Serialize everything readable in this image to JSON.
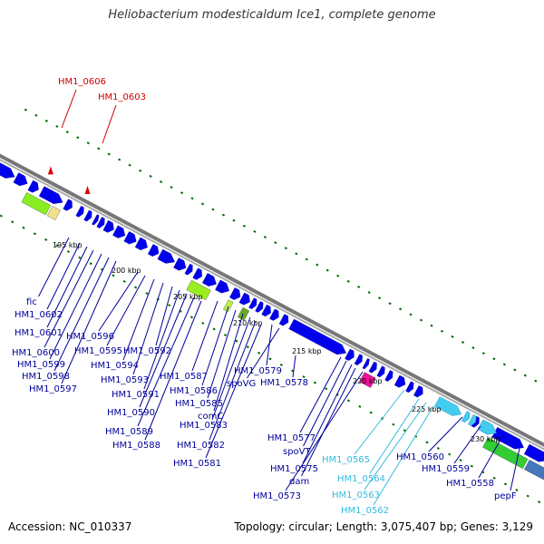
{
  "title": "Heliobacterium modesticaldum Ice1, complete genome",
  "footer": {
    "accession": "Accession: NC_010337",
    "summary": "Topology: circular; Length: 3,075,407 bp; Genes: 3,129"
  },
  "colors": {
    "cds_forward": "#0000ee",
    "label_default": "#000099",
    "label_highlight": "#cc0000",
    "label_cyan": "#33bbdd",
    "backbone": "#888888",
    "tick": "#006600"
  },
  "ticks": [
    {
      "label": "195 kbp"
    },
    {
      "label": "200 kbp"
    },
    {
      "label": "205 kbp"
    },
    {
      "label": "210 kbp"
    },
    {
      "label": "215 kbp"
    },
    {
      "label": "220 kbp"
    },
    {
      "label": "225 kbp"
    },
    {
      "label": "230 kbp"
    }
  ],
  "labels_red": [
    "HM1_0606",
    "HM1_0603"
  ],
  "labels": [
    {
      "text": "fic",
      "color": "label_default"
    },
    {
      "text": "HM1_0602",
      "color": "label_default"
    },
    {
      "text": "HM1_0601",
      "color": "label_default"
    },
    {
      "text": "HM1_0600",
      "color": "label_default"
    },
    {
      "text": "HM1_0599",
      "color": "label_default"
    },
    {
      "text": "HM1_0598",
      "color": "label_default"
    },
    {
      "text": "HM1_0597",
      "color": "label_default"
    },
    {
      "text": "HM1_0596",
      "color": "label_default"
    },
    {
      "text": "HM1_0595",
      "color": "label_default"
    },
    {
      "text": "HM1_0594",
      "color": "label_default"
    },
    {
      "text": "HM1_0593",
      "color": "label_default"
    },
    {
      "text": "HM1_0592",
      "color": "label_default"
    },
    {
      "text": "HM1_0591",
      "color": "label_default"
    },
    {
      "text": "HM1_0590",
      "color": "label_default"
    },
    {
      "text": "HM1_0589",
      "color": "label_default"
    },
    {
      "text": "HM1_0588",
      "color": "label_default"
    },
    {
      "text": "HM1_0587",
      "color": "label_default"
    },
    {
      "text": "HM1_0586",
      "color": "label_default"
    },
    {
      "text": "HM1_0585",
      "color": "label_default"
    },
    {
      "text": "comC",
      "color": "label_default"
    },
    {
      "text": "HM1_0583",
      "color": "label_default"
    },
    {
      "text": "HM1_0582",
      "color": "label_default"
    },
    {
      "text": "HM1_0581",
      "color": "label_default"
    },
    {
      "text": "HM1_0579",
      "color": "label_default"
    },
    {
      "text": "spoVG",
      "color": "label_default"
    },
    {
      "text": "HM1_0578",
      "color": "label_default"
    },
    {
      "text": "HM1_0577",
      "color": "label_default"
    },
    {
      "text": "spoVT",
      "color": "label_default"
    },
    {
      "text": "HM1_0575",
      "color": "label_default"
    },
    {
      "text": "dam",
      "color": "label_default"
    },
    {
      "text": "HM1_0573",
      "color": "label_default"
    },
    {
      "text": "HM1_0565",
      "color": "label_cyan"
    },
    {
      "text": "HM1_0564",
      "color": "label_cyan"
    },
    {
      "text": "HM1_0563",
      "color": "label_cyan"
    },
    {
      "text": "HM1_0562",
      "color": "label_cyan"
    },
    {
      "text": "HM1_0560",
      "color": "label_default"
    },
    {
      "text": "HM1_0559",
      "color": "label_default"
    },
    {
      "text": "HM1_0558",
      "color": "label_default"
    },
    {
      "text": "pepF",
      "color": "label_default"
    }
  ]
}
